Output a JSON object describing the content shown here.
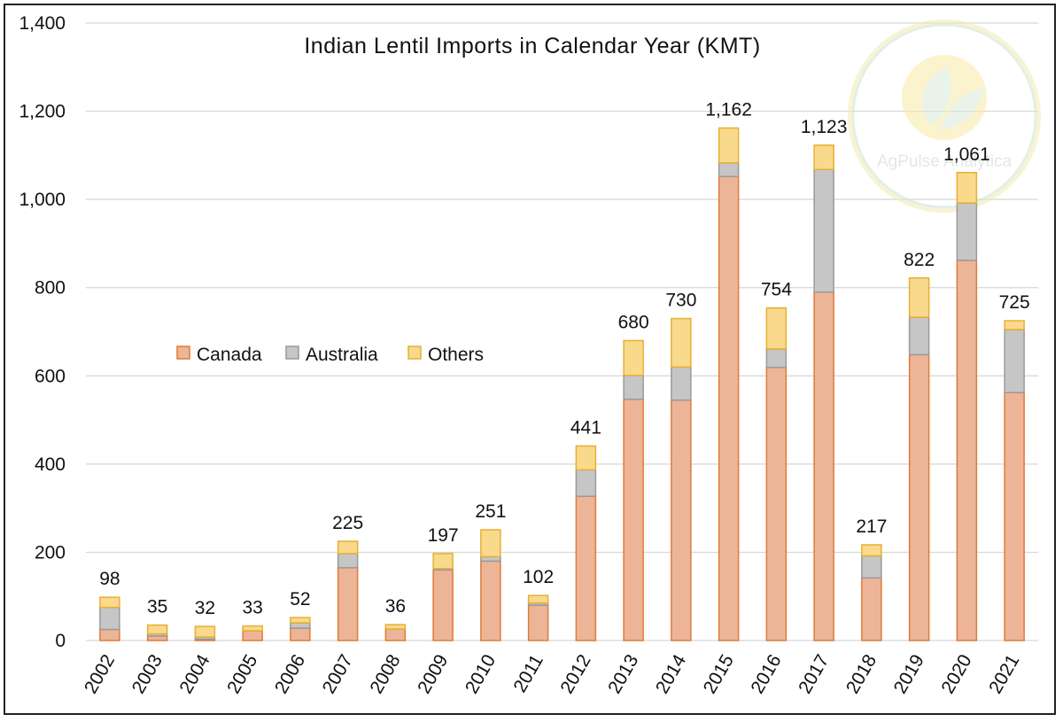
{
  "chart_data": {
    "type": "bar",
    "stacked": true,
    "title": "Indian Lentil Imports in Calendar Year (KMT)",
    "xlabel": "",
    "ylabel": "",
    "ylim": [
      0,
      1400
    ],
    "yticks": [
      0,
      200,
      400,
      600,
      800,
      1000,
      1200,
      1400
    ],
    "ytick_labels": [
      "0",
      "200",
      "400",
      "600",
      "800",
      "1,000",
      "1,200",
      "1,400"
    ],
    "grid": true,
    "legend_position": "middle-left",
    "categories": [
      "2002",
      "2003",
      "2004",
      "2005",
      "2006",
      "2007",
      "2008",
      "2009",
      "2010",
      "2011",
      "2012",
      "2013",
      "2014",
      "2015",
      "2016",
      "2017",
      "2018",
      "2019",
      "2020",
      "2021"
    ],
    "series": [
      {
        "name": "Canada",
        "color": "#edb598",
        "edge": "#e07b39",
        "values": [
          25,
          10,
          3,
          22,
          28,
          165,
          26,
          160,
          180,
          80,
          327,
          547,
          545,
          1052,
          619,
          790,
          142,
          648,
          862,
          562
        ]
      },
      {
        "name": "Australia",
        "color": "#c6c6c6",
        "edge": "#9a9a9a",
        "values": [
          50,
          5,
          5,
          0,
          12,
          32,
          0,
          3,
          10,
          5,
          60,
          54,
          75,
          31,
          42,
          278,
          50,
          85,
          130,
          143
        ]
      },
      {
        "name": "Others",
        "color": "#f9d98c",
        "edge": "#e6b032",
        "values": [
          23,
          20,
          24,
          11,
          12,
          28,
          10,
          34,
          61,
          17,
          54,
          79,
          110,
          79,
          93,
          55,
          25,
          89,
          69,
          20
        ]
      }
    ],
    "totals": [
      98,
      35,
      32,
      33,
      52,
      225,
      36,
      197,
      251,
      102,
      441,
      680,
      730,
      1162,
      754,
      1123,
      217,
      822,
      1061,
      725
    ],
    "total_labels": [
      "98",
      "35",
      "32",
      "33",
      "52",
      "225",
      "36",
      "197",
      "251",
      "102",
      "441",
      "680",
      "730",
      "1,162",
      "754",
      "1,123",
      "217",
      "822",
      "1,061",
      "725"
    ]
  },
  "watermark": {
    "text_a": "AgPulse",
    "text_b": " Analytica"
  }
}
